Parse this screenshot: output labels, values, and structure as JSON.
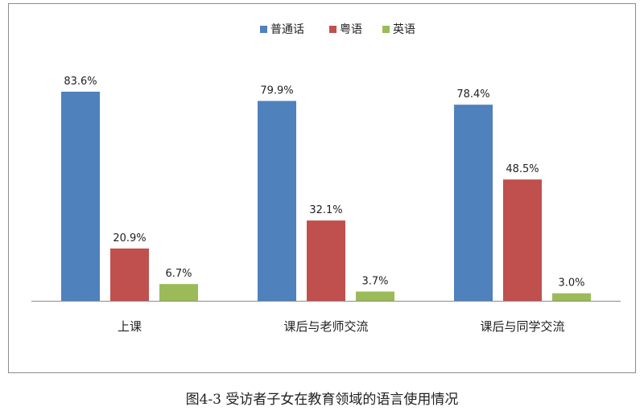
{
  "chart_data": {
    "type": "bar",
    "categories": [
      "上课",
      "课后与老师交流",
      "课后与同学交流"
    ],
    "series": [
      {
        "name": "普通话",
        "color": "#4f81bd",
        "values": [
          83.6,
          79.9,
          78.4
        ],
        "labels": [
          "83.6%",
          "79.9%",
          "78.4%"
        ]
      },
      {
        "name": "粤语",
        "color": "#c0504d",
        "values": [
          20.9,
          32.1,
          48.5
        ],
        "labels": [
          "20.9%",
          "32.1%",
          "48.5%"
        ]
      },
      {
        "name": "英语",
        "color": "#9bbb59",
        "values": [
          6.7,
          3.7,
          3.0
        ],
        "labels": [
          "6.7%",
          "3.7%",
          "3.0%"
        ]
      }
    ],
    "ylim": [
      0,
      100
    ],
    "grid": false,
    "legend": "top-center",
    "caption": "图4-3 受访者子女在教育领域的语言使用情况"
  }
}
